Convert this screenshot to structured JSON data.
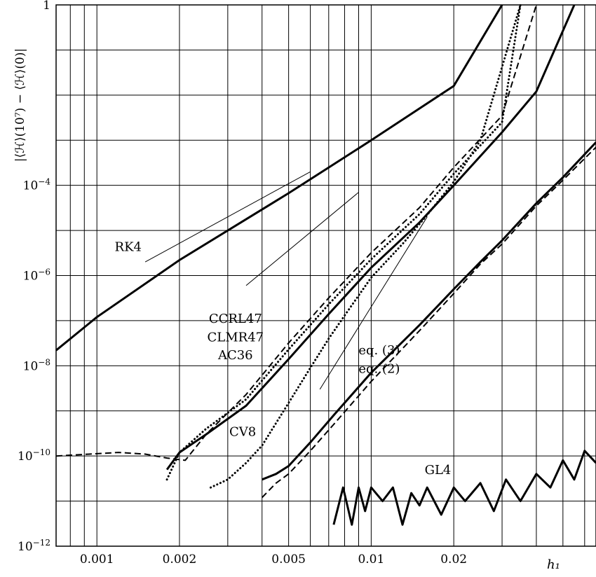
{
  "chart_data": {
    "type": "line",
    "xscale": "log",
    "yscale": "log",
    "xlim": [
      0.00071,
      0.066
    ],
    "ylim": [
      1e-12,
      1
    ],
    "xlabel": "h₁",
    "ylabel": "|⟨ℋ⟩(10⁷) − ⟨ℋ⟩(0)|",
    "grid": true,
    "x_ticks": [
      {
        "value": 0.001,
        "label": "0.001"
      },
      {
        "value": 0.002,
        "label": "0.002"
      },
      {
        "value": 0.005,
        "label": "0.005"
      },
      {
        "value": 0.01,
        "label": "0.01"
      },
      {
        "value": 0.02,
        "label": "0.02"
      }
    ],
    "y_ticks": [
      {
        "value": 1,
        "base": "1",
        "exp": ""
      },
      {
        "value": 0.0001,
        "base": "10",
        "exp": "−4"
      },
      {
        "value": 1e-06,
        "base": "10",
        "exp": "−6"
      },
      {
        "value": 1e-08,
        "base": "10",
        "exp": "−8"
      },
      {
        "value": 1e-10,
        "base": "10",
        "exp": "−10"
      },
      {
        "value": 1e-12,
        "base": "10",
        "exp": "−12"
      }
    ],
    "series": [
      {
        "name": "RK4",
        "style": "solid",
        "width": 3,
        "x": [
          0.00071,
          0.001,
          0.002,
          0.005,
          0.01,
          0.02,
          0.03
        ],
        "y": [
          2.2e-08,
          1.2e-07,
          2.2e-06,
          6.7e-05,
          0.001,
          0.016,
          1.0
        ]
      },
      {
        "name": "CCRL47",
        "style": "dashed",
        "width": 2,
        "x": [
          0.00071,
          0.0012,
          0.0015,
          0.0018,
          0.0021,
          0.0025,
          0.0035,
          0.005,
          0.007,
          0.01,
          0.015,
          0.02,
          0.03,
          0.04
        ],
        "y": [
          1e-10,
          1.2e-10,
          1.1e-10,
          9e-11,
          8e-11,
          3e-10,
          2.3e-09,
          3.2e-08,
          3.2e-07,
          3.2e-06,
          3.2e-05,
          0.00025,
          0.0035,
          1.0
        ]
      },
      {
        "name": "CLMR47",
        "style": "dotted",
        "width": 3,
        "x": [
          0.0018,
          0.002,
          0.0025,
          0.0035,
          0.005,
          0.007,
          0.01,
          0.015,
          0.02,
          0.03,
          0.035
        ],
        "y": [
          3e-11,
          1.2e-10,
          4e-10,
          1.8e-09,
          2.3e-08,
          2.3e-07,
          2.3e-06,
          2.3e-05,
          0.00018,
          0.0025,
          1.0
        ]
      },
      {
        "name": "AC36",
        "style": "solid",
        "width": 3,
        "x": [
          0.0018,
          0.002,
          0.0025,
          0.0035,
          0.005,
          0.007,
          0.01,
          0.015,
          0.02,
          0.03,
          0.04,
          0.055
        ],
        "y": [
          5e-11,
          1.2e-10,
          3e-10,
          1.3e-09,
          1.4e-08,
          1.4e-07,
          1.5e-06,
          1.5e-05,
          0.0001,
          0.0015,
          0.012,
          1.0
        ]
      },
      {
        "name": "CV8",
        "style": "dotted",
        "width": 3,
        "x": [
          0.0026,
          0.003,
          0.0035,
          0.004,
          0.005,
          0.006,
          0.007,
          0.008,
          0.01,
          0.013,
          0.016,
          0.02,
          0.025,
          0.035
        ],
        "y": [
          2e-11,
          3e-11,
          7e-11,
          1.7e-10,
          1.5e-09,
          9e-09,
          4e-08,
          1.3e-07,
          9e-07,
          5e-06,
          2.2e-05,
          0.00012,
          0.001,
          1.0
        ]
      },
      {
        "name": "eq. (3)",
        "style": "solid",
        "width": 3,
        "x": [
          0.004,
          0.0045,
          0.005,
          0.006,
          0.0073,
          0.01,
          0.015,
          0.02,
          0.025,
          0.03,
          0.04,
          0.05,
          0.066
        ],
        "y": [
          3e-11,
          4e-11,
          6e-11,
          2e-10,
          8e-10,
          7e-09,
          8e-08,
          5e-07,
          2e-06,
          6e-06,
          4e-05,
          0.00015,
          0.0009
        ]
      },
      {
        "name": "eq. (2)",
        "style": "dashed",
        "width": 2,
        "x": [
          0.004,
          0.0045,
          0.005,
          0.006,
          0.0073,
          0.01,
          0.015,
          0.02,
          0.025,
          0.03,
          0.04,
          0.05,
          0.066
        ],
        "y": [
          1.2e-11,
          2.5e-11,
          4e-11,
          1.3e-10,
          5e-10,
          4.5e-09,
          6e-08,
          4e-07,
          1.8e-06,
          5e-06,
          3.5e-05,
          0.00013,
          0.0007
        ]
      },
      {
        "name": "GL4",
        "style": "solid",
        "width": 3,
        "x": [
          0.0073,
          0.0079,
          0.0085,
          0.009,
          0.0095,
          0.01,
          0.011,
          0.012,
          0.013,
          0.014,
          0.015,
          0.016,
          0.018,
          0.02,
          0.022,
          0.025,
          0.028,
          0.031,
          0.035,
          0.04,
          0.045,
          0.05,
          0.055,
          0.06,
          0.066
        ],
        "y": [
          3e-12,
          2e-11,
          3e-12,
          2e-11,
          6e-12,
          2e-11,
          1e-11,
          2e-11,
          3e-12,
          1.5e-11,
          8e-12,
          2e-11,
          5e-12,
          2e-11,
          1e-11,
          2.5e-11,
          6e-12,
          3e-11,
          1e-11,
          4e-11,
          2e-11,
          8e-11,
          3e-11,
          1.3e-10,
          7e-11
        ]
      },
      {
        "name": "ref-slope-4",
        "style": "thin",
        "width": 1,
        "x": [
          0.0015,
          0.006
        ],
        "y": [
          2e-06,
          0.0002
        ]
      },
      {
        "name": "ref-slope-6",
        "style": "thin",
        "width": 1,
        "x": [
          0.0035,
          0.009
        ],
        "y": [
          6e-07,
          7e-05
        ]
      },
      {
        "name": "ref-slope-8",
        "style": "thin",
        "width": 1,
        "x": [
          0.0065,
          0.016
        ],
        "y": [
          3e-09,
          2e-05
        ]
      }
    ],
    "annotations": [
      {
        "text": "RK4",
        "x": 0.0013,
        "y": 3.5e-06
      },
      {
        "text": "CCRL47",
        "x": 0.0032,
        "y": 9e-08
      },
      {
        "text": "CLMR47",
        "x": 0.0032,
        "y": 3.5e-08
      },
      {
        "text": "AC36",
        "x": 0.0032,
        "y": 1.4e-08
      },
      {
        "text": "eq. (3)",
        "x": 0.0107,
        "y": 1.8e-08
      },
      {
        "text": "eq. (2)",
        "x": 0.0107,
        "y": 7e-09
      },
      {
        "text": "CV8",
        "x": 0.0034,
        "y": 2.8e-10
      },
      {
        "text": "GL4",
        "x": 0.0175,
        "y": 4e-11
      }
    ]
  }
}
